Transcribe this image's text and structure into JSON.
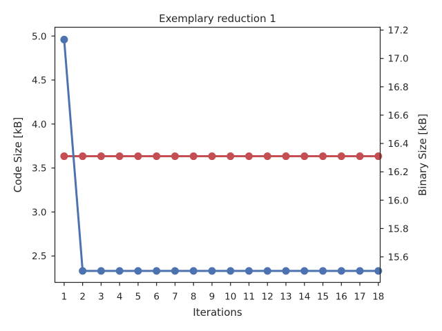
{
  "chart_data": {
    "type": "line",
    "title": "Exemplary reduction 1",
    "xlabel": "Iterations",
    "ylabel": "Code Size [kB]",
    "ylabel_right": "Binary Size [kB]",
    "x": [
      1,
      2,
      3,
      4,
      5,
      6,
      7,
      8,
      9,
      10,
      11,
      12,
      13,
      14,
      15,
      16,
      17,
      18
    ],
    "ylim": [
      2.2,
      5.1
    ],
    "ylim_right": [
      15.42,
      17.22
    ],
    "yticks": [
      "2.5",
      "3.0",
      "3.5",
      "4.0",
      "4.5",
      "5.0"
    ],
    "yticks_right": [
      "15.6",
      "15.8",
      "16.0",
      "16.2",
      "16.4",
      "16.6",
      "16.8",
      "17.0",
      "17.2"
    ],
    "grid": false,
    "series": [
      {
        "axis": "left",
        "color": "#4c72b0",
        "values": [
          4.96,
          2.33,
          2.33,
          2.33,
          2.33,
          2.33,
          2.33,
          2.33,
          2.33,
          2.33,
          2.33,
          2.33,
          2.33,
          2.33,
          2.33,
          2.33,
          2.33,
          2.33
        ]
      },
      {
        "axis": "right",
        "color": "#c44e52",
        "values": [
          16.31,
          16.31,
          16.31,
          16.31,
          16.31,
          16.31,
          16.31,
          16.31,
          16.31,
          16.31,
          16.31,
          16.31,
          16.31,
          16.31,
          16.31,
          16.31,
          16.31,
          16.31
        ]
      }
    ]
  }
}
